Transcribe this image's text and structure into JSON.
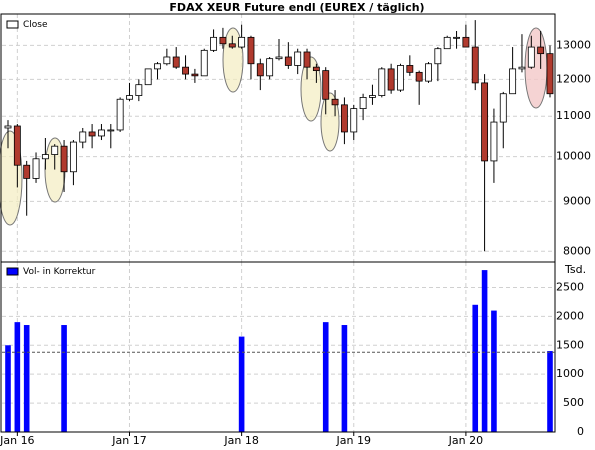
{
  "chart_data": {
    "type": "candlestick",
    "title": "FDAX XEUR Future endl (EUREX / täglich)",
    "categories": [
      null,
      "Jan 16",
      null,
      null,
      null,
      null,
      null,
      null,
      null,
      null,
      null,
      null,
      null,
      "Jan 17",
      null,
      null,
      null,
      null,
      null,
      null,
      null,
      null,
      null,
      null,
      null,
      "Jan 18",
      null,
      null,
      null,
      null,
      null,
      null,
      null,
      null,
      null,
      null,
      null,
      "Jan 19",
      null,
      null,
      null,
      null,
      null,
      null,
      null,
      null,
      null,
      null,
      null,
      "Jan 20",
      null,
      null,
      null,
      null,
      null,
      null,
      null,
      null,
      null
    ],
    "series": [
      {
        "name": "Close",
        "color": "#ffffff",
        "down_color": "#b03a2e",
        "open": [
          10700,
          10750,
          9800,
          9500,
          9950,
          10050,
          10250,
          9650,
          10350,
          10600,
          10500,
          10650,
          10650,
          11450,
          11550,
          11850,
          12300,
          12450,
          12650,
          12350,
          12150,
          12100,
          12850,
          13250,
          13050,
          12950,
          13250,
          12450,
          12100,
          12600,
          12650,
          12400,
          12800,
          12350,
          12250,
          11450,
          11300,
          10600,
          11200,
          11500,
          11550,
          12300,
          11700,
          12400,
          12200,
          11950,
          12450,
          12900,
          13250,
          13250,
          12950,
          11900,
          9900,
          10850,
          11600,
          12300,
          12350,
          12950,
          12750
        ],
        "high": [
          10900,
          10800,
          9900,
          10100,
          10450,
          10300,
          10400,
          10400,
          10700,
          10800,
          10800,
          10800,
          11500,
          11900,
          12000,
          12300,
          12500,
          12900,
          12950,
          12700,
          12300,
          12900,
          13500,
          13550,
          13300,
          13650,
          13300,
          12600,
          12650,
          13200,
          13100,
          12900,
          12900,
          12450,
          12350,
          11700,
          11500,
          11300,
          11600,
          11850,
          12350,
          12450,
          12450,
          12700,
          12250,
          12500,
          12950,
          13300,
          13450,
          13650,
          13800,
          12150,
          11200,
          11650,
          12950,
          13350,
          13300,
          13450,
          13000
        ],
        "low": [
          10200,
          9300,
          8700,
          9400,
          9700,
          9700,
          9200,
          9350,
          10200,
          10200,
          10400,
          10200,
          10600,
          11400,
          11400,
          11850,
          12000,
          12400,
          12300,
          12000,
          11900,
          12100,
          12800,
          12900,
          12900,
          12900,
          12000,
          11700,
          12000,
          12550,
          12300,
          12150,
          12000,
          11900,
          11050,
          11000,
          10300,
          10400,
          10900,
          11300,
          11500,
          11600,
          11650,
          12100,
          11300,
          11900,
          11950,
          12900,
          12900,
          12950,
          11700,
          8000,
          9400,
          10200,
          11600,
          12200,
          12300,
          12300,
          11500
        ],
        "close": [
          10750,
          9800,
          9500,
          9950,
          10050,
          10250,
          9650,
          10350,
          10600,
          10500,
          10650,
          10650,
          11450,
          11550,
          11850,
          12300,
          12450,
          12650,
          12350,
          12150,
          12100,
          12850,
          13250,
          13050,
          12950,
          13250,
          12450,
          12100,
          12600,
          12650,
          12400,
          12800,
          12350,
          12250,
          11450,
          11300,
          10600,
          11200,
          11500,
          11550,
          12300,
          11700,
          12400,
          12200,
          11950,
          12450,
          12900,
          13250,
          13250,
          12950,
          11900,
          9900,
          10850,
          11600,
          12300,
          12350,
          12950,
          12750,
          11600
        ]
      },
      {
        "name": "Vol- in Korrektur",
        "color": "#0000ff",
        "type": "bar",
        "axis": "y2",
        "values": [
          1500,
          1900,
          1850,
          null,
          null,
          null,
          1850,
          null,
          null,
          null,
          null,
          null,
          null,
          null,
          null,
          null,
          null,
          null,
          null,
          null,
          null,
          null,
          null,
          null,
          null,
          1650,
          null,
          null,
          null,
          null,
          null,
          null,
          null,
          null,
          1900,
          null,
          1850,
          null,
          null,
          null,
          null,
          null,
          null,
          null,
          null,
          null,
          null,
          null,
          null,
          null,
          2200,
          2800,
          2100,
          null,
          null,
          null,
          null,
          null,
          1400
        ]
      }
    ],
    "log_scale": true,
    "ylim": [
      7800,
      14000
    ],
    "yticks": [
      8000,
      9000,
      10000,
      11000,
      12000,
      13000
    ],
    "y2label": "Tsd.",
    "y2lim": [
      0,
      2940
    ],
    "y2ticks": [
      0,
      500,
      1000,
      1500,
      2000,
      2500
    ],
    "reference_line": 1380,
    "grid": true
  }
}
